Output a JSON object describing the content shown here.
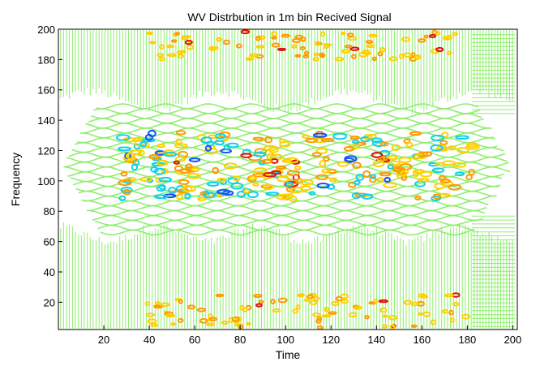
{
  "chart_data": {
    "type": "heatmap",
    "title": "WV Distrbution in 1m bin Recived Signal",
    "xlabel": "Time",
    "ylabel": "Frequency",
    "xlim": [
      0,
      202
    ],
    "ylim": [
      2,
      200
    ],
    "x_ticks": [
      20,
      40,
      60,
      80,
      100,
      120,
      140,
      160,
      180,
      200
    ],
    "y_ticks": [
      20,
      40,
      60,
      80,
      100,
      120,
      140,
      160,
      180,
      200
    ],
    "grid": false,
    "legend": "none",
    "colors": {
      "background_band": "#90ee70",
      "low": "#ffd000",
      "mid": "#ff9900",
      "high": "#dd1111",
      "negative": "#10d0f0",
      "negative_strong": "#1050ff"
    },
    "energy_bands": [
      {
        "f_center": 110,
        "f_halfwidth": 22,
        "t_start": 25,
        "t_end": 185,
        "intensity": "high"
      },
      {
        "f_center": 190,
        "f_halfwidth": 12,
        "t_start": 40,
        "t_end": 175,
        "intensity": "mid"
      },
      {
        "f_center": 12,
        "f_halfwidth": 12,
        "t_start": 30,
        "t_end": 180,
        "intensity": "mid"
      }
    ]
  }
}
